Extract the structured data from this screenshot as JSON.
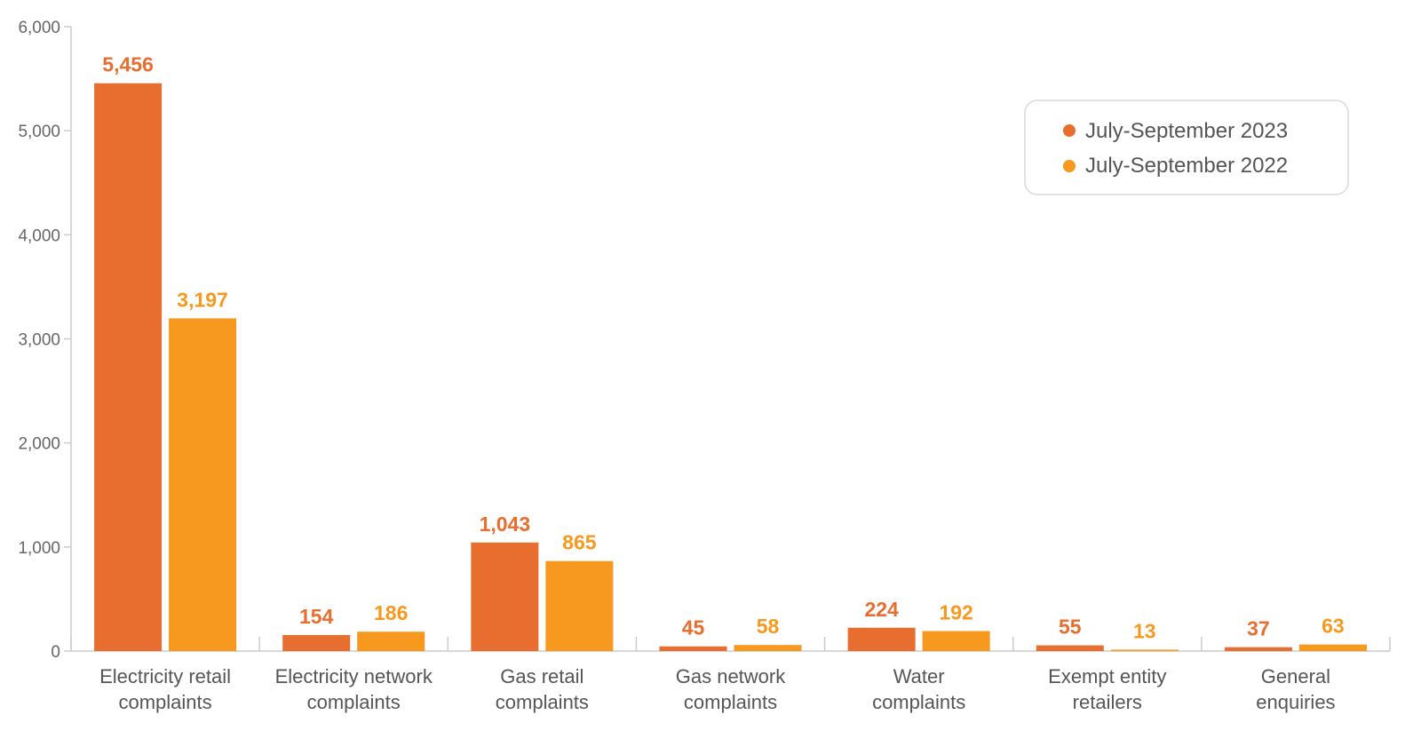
{
  "chart_data": {
    "type": "bar",
    "categories": [
      [
        "Electricity retail",
        "complaints"
      ],
      [
        "Electricity network",
        "complaints"
      ],
      [
        "Gas retail",
        "complaints"
      ],
      [
        "Gas network",
        "complaints"
      ],
      [
        "Water",
        "complaints"
      ],
      [
        "Exempt entity",
        "retailers"
      ],
      [
        "General",
        "enquiries"
      ]
    ],
    "series": [
      {
        "name": "July-September 2023",
        "color": "#E86E2F",
        "values": [
          5456,
          154,
          1043,
          45,
          224,
          55,
          37
        ],
        "labels": [
          "5,456",
          "154",
          "1,043",
          "45",
          "224",
          "55",
          "37"
        ]
      },
      {
        "name": "July-September 2022",
        "color": "#F7991F",
        "values": [
          3197,
          186,
          865,
          58,
          192,
          13,
          63
        ],
        "labels": [
          "3,197",
          "186",
          "865",
          "58",
          "192",
          "13",
          "63"
        ]
      }
    ],
    "ylim": [
      0,
      6000
    ],
    "yticks": [
      0,
      1000,
      2000,
      3000,
      4000,
      5000,
      6000
    ],
    "ytick_labels": [
      "0",
      "1,000",
      "2,000",
      "3,000",
      "4,000",
      "5,000",
      "6,000"
    ],
    "grid": false,
    "legend_position": "top-right"
  }
}
